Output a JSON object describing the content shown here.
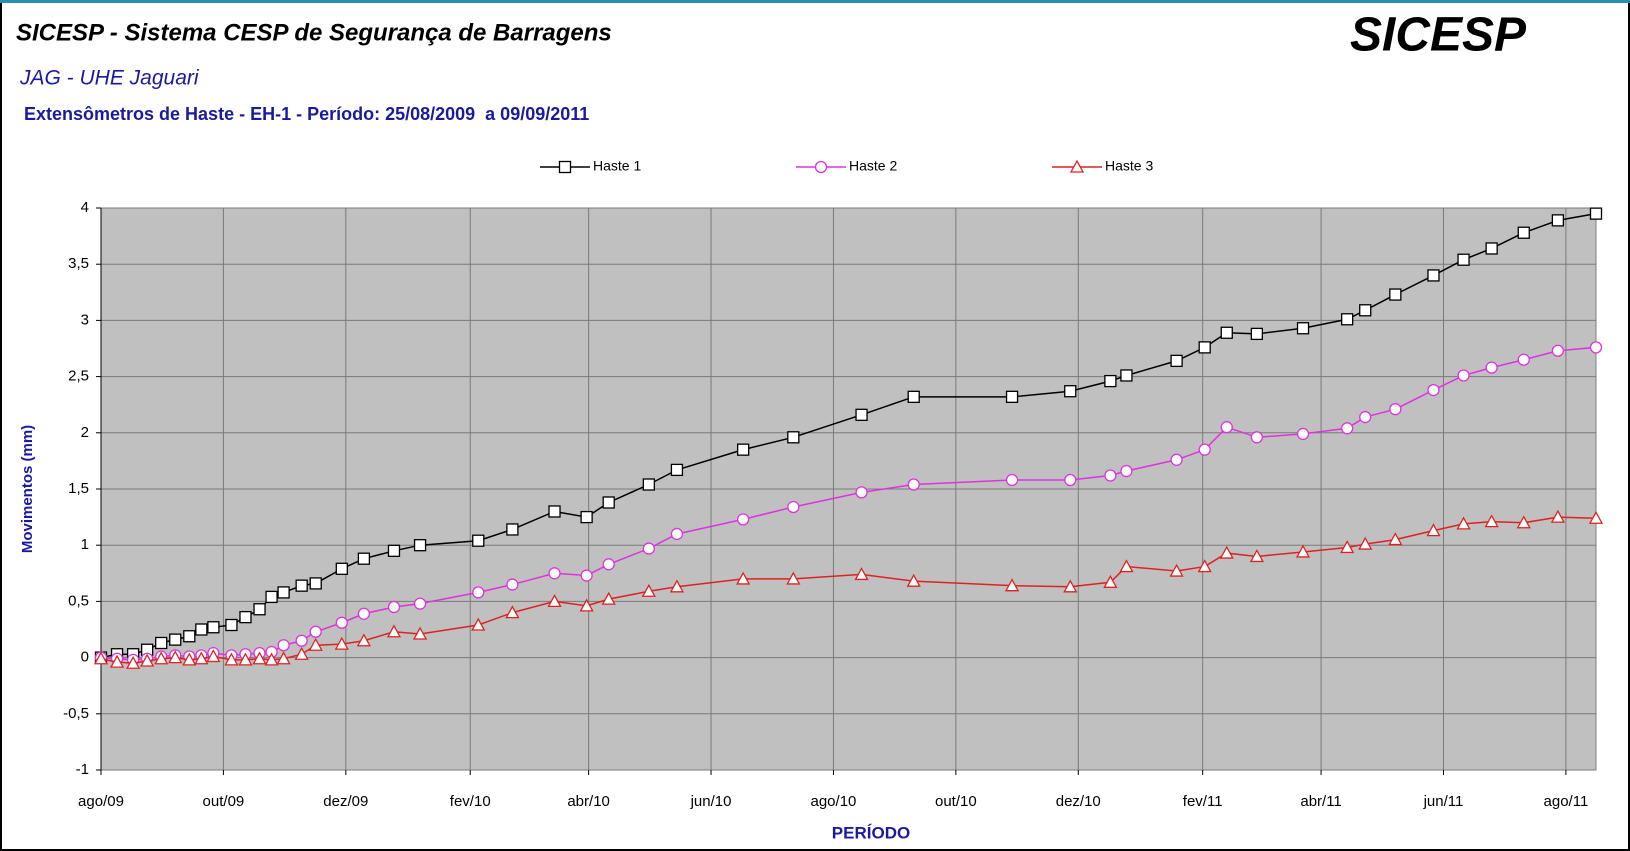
{
  "chart_data": {
    "type": "line",
    "title": "SICESP - Sistema CESP de Segurança de Barragens",
    "subtitle": "JAG - UHE Jaguari",
    "description": "Extensômetros de Haste - EH-1 - Período: 25/08/2009  a 09/09/2011",
    "logo": "SICESP",
    "x_label": "PERÍODO",
    "y_label": "Movimentos (mm)",
    "x": [
      "2009-08-25",
      "2009-09-02",
      "2009-09-10",
      "2009-09-17",
      "2009-09-24",
      "2009-10-01",
      "2009-10-08",
      "2009-10-14",
      "2009-10-20",
      "2009-10-29",
      "2009-11-05",
      "2009-11-12",
      "2009-11-18",
      "2009-11-24",
      "2009-12-03",
      "2009-12-10",
      "2009-12-23",
      "2010-01-03",
      "2010-01-18",
      "2010-01-31",
      "2010-03-01",
      "2010-03-18",
      "2010-04-08",
      "2010-04-24",
      "2010-05-05",
      "2010-05-25",
      "2010-06-08",
      "2010-07-11",
      "2010-08-05",
      "2010-09-08",
      "2010-10-04",
      "2010-11-22",
      "2010-12-21",
      "2011-01-10",
      "2011-01-18",
      "2011-02-12",
      "2011-02-26",
      "2011-03-09",
      "2011-03-24",
      "2011-04-16",
      "2011-05-08",
      "2011-05-17",
      "2011-06-01",
      "2011-06-20",
      "2011-07-05",
      "2011-07-19",
      "2011-08-04",
      "2011-08-21",
      "2011-09-09"
    ],
    "series": [
      {
        "name": "Haste 1",
        "color": "#000000",
        "marker": "square",
        "values": [
          0,
          0.03,
          0.03,
          0.07,
          0.13,
          0.16,
          0.19,
          0.25,
          0.27,
          0.29,
          0.36,
          0.43,
          0.54,
          0.58,
          0.64,
          0.66,
          0.79,
          0.88,
          0.95,
          1.0,
          1.04,
          1.14,
          1.3,
          1.25,
          1.38,
          1.54,
          1.67,
          1.85,
          1.96,
          2.16,
          2.32,
          2.32,
          2.37,
          2.46,
          2.51,
          2.64,
          2.76,
          2.89,
          2.88,
          2.93,
          3.01,
          3.09,
          3.23,
          3.4,
          3.54,
          3.64,
          3.78,
          3.89,
          3.95
        ]
      },
      {
        "name": "Haste 2",
        "color": "#dd33dd",
        "marker": "circle",
        "values": [
          0,
          -0.01,
          -0.02,
          -0.01,
          0.01,
          0.02,
          0.01,
          0.02,
          0.04,
          0.02,
          0.03,
          0.04,
          0.05,
          0.11,
          0.15,
          0.23,
          0.31,
          0.39,
          0.45,
          0.48,
          0.58,
          0.65,
          0.75,
          0.73,
          0.83,
          0.97,
          1.1,
          1.23,
          1.34,
          1.47,
          1.54,
          1.58,
          1.58,
          1.62,
          1.66,
          1.76,
          1.85,
          2.05,
          1.96,
          1.99,
          2.04,
          2.14,
          2.21,
          2.38,
          2.51,
          2.58,
          2.65,
          2.73,
          2.76
        ]
      },
      {
        "name": "Haste 3",
        "color": "#dd2222",
        "marker": "triangle",
        "values": [
          -0.01,
          -0.04,
          -0.05,
          -0.03,
          -0.01,
          0,
          -0.02,
          -0.01,
          0.01,
          -0.02,
          -0.02,
          -0.01,
          -0.02,
          -0.01,
          0.03,
          0.11,
          0.12,
          0.15,
          0.23,
          0.21,
          0.29,
          0.4,
          0.5,
          0.46,
          0.52,
          0.59,
          0.63,
          0.7,
          0.7,
          0.74,
          0.68,
          0.64,
          0.63,
          0.67,
          0.81,
          0.77,
          0.81,
          0.93,
          0.9,
          0.94,
          0.98,
          1.01,
          1.05,
          1.13,
          1.19,
          1.21,
          1.2,
          1.25,
          1.24
        ]
      }
    ],
    "xlim": [
      "2009-08-25",
      "2011-09-09"
    ],
    "xticks": [
      {
        "value": "2009-08-25",
        "label": "ago/09"
      },
      {
        "value": "2009-10-25",
        "label": "out/09"
      },
      {
        "value": "2009-12-25",
        "label": "dez/09"
      },
      {
        "value": "2010-02-25",
        "label": "fev/10"
      },
      {
        "value": "2010-04-25",
        "label": "abr/10"
      },
      {
        "value": "2010-06-25",
        "label": "jun/10"
      },
      {
        "value": "2010-08-25",
        "label": "ago/10"
      },
      {
        "value": "2010-10-25",
        "label": "out/10"
      },
      {
        "value": "2010-12-25",
        "label": "dez/10"
      },
      {
        "value": "2011-02-25",
        "label": "fev/11"
      },
      {
        "value": "2011-04-25",
        "label": "abr/11"
      },
      {
        "value": "2011-06-25",
        "label": "jun/11"
      },
      {
        "value": "2011-08-25",
        "label": "ago/11"
      }
    ],
    "ylim": [
      -1,
      4
    ],
    "yticks": [
      -1,
      {
        "value": -0.5,
        "label": "-0,5"
      },
      0,
      {
        "value": 0.5,
        "label": "0,5"
      },
      1,
      {
        "value": 1.5,
        "label": "1,5"
      },
      2,
      {
        "value": 2.5,
        "label": "2,5"
      },
      3,
      {
        "value": 3.5,
        "label": "3,5"
      },
      4
    ],
    "grid": true,
    "legend": "top",
    "plot_background": "#c0c0c0"
  }
}
